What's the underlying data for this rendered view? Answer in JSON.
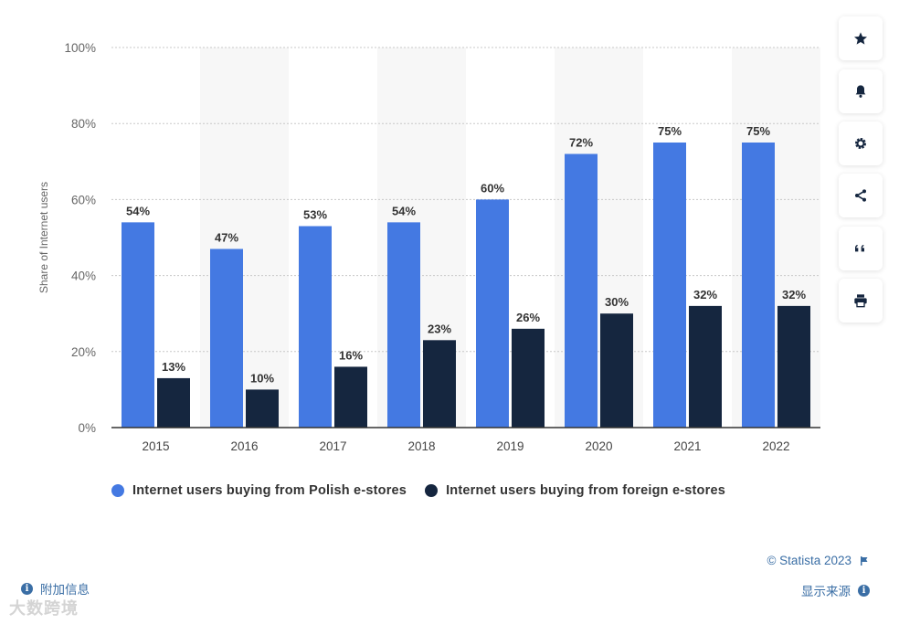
{
  "chart_data": {
    "type": "bar",
    "categories": [
      "2015",
      "2016",
      "2017",
      "2018",
      "2019",
      "2020",
      "2021",
      "2022"
    ],
    "series": [
      {
        "name": "Internet users buying from Polish e-stores",
        "color": "#4479e2",
        "values": [
          54,
          47,
          53,
          54,
          60,
          72,
          75,
          75
        ]
      },
      {
        "name": "Internet users buying from foreign e-stores",
        "color": "#15263f",
        "values": [
          13,
          10,
          16,
          23,
          26,
          30,
          32,
          32
        ]
      }
    ],
    "ylabel": "Share of Internet users",
    "yticks": [
      "0%",
      "20%",
      "40%",
      "60%",
      "80%",
      "100%"
    ],
    "ylim": [
      0,
      100
    ],
    "value_suffix": "%",
    "grid": true,
    "legend_position": "bottom-left"
  },
  "sidebar": {
    "buttons": [
      {
        "icon": "star-icon"
      },
      {
        "icon": "bell-icon"
      },
      {
        "icon": "gear-icon"
      },
      {
        "icon": "share-icon"
      },
      {
        "icon": "quote-icon"
      },
      {
        "icon": "print-icon"
      }
    ]
  },
  "footer": {
    "copyright": "© Statista 2023",
    "additional_info": "附加信息",
    "show_source": "显示来源",
    "watermark": "大数跨境"
  }
}
